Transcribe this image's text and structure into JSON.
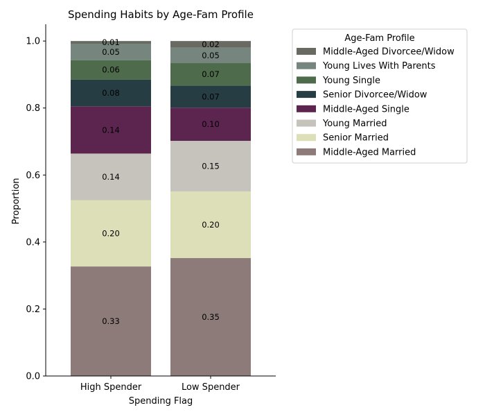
{
  "chart_data": {
    "type": "bar",
    "stacked": true,
    "title": "Spending Habits by Age-Fam Profile",
    "xlabel": "Spending Flag",
    "ylabel": "Proportion",
    "ylim": [
      0,
      1.05
    ],
    "yticks": [
      0.0,
      0.2,
      0.4,
      0.6,
      0.8,
      1.0
    ],
    "ytick_labels": [
      "0.0",
      "0.2",
      "0.4",
      "0.6",
      "0.8",
      "1.0"
    ],
    "categories": [
      "High Spender",
      "Low Spender"
    ],
    "grid": false,
    "legend": {
      "title": "Age-Fam Profile",
      "placement": "outside-right"
    },
    "series": [
      {
        "name": "Middle-Aged Married",
        "color": "#8d7b7a",
        "values": [
          0.327,
          0.352
        ],
        "labels": [
          "0.33",
          "0.35"
        ]
      },
      {
        "name": "Senior Married",
        "color": "#dcdfb8",
        "values": [
          0.198,
          0.199
        ],
        "labels": [
          "0.20",
          "0.20"
        ]
      },
      {
        "name": "Young Married",
        "color": "#c5c3bc",
        "values": [
          0.139,
          0.151
        ],
        "labels": [
          "0.14",
          "0.15"
        ]
      },
      {
        "name": "Middle-Aged Single",
        "color": "#5c2550",
        "values": [
          0.141,
          0.099
        ],
        "labels": [
          "0.14",
          "0.10"
        ]
      },
      {
        "name": "Senior Divorcee/Widow",
        "color": "#263d44",
        "values": [
          0.08,
          0.066
        ],
        "labels": [
          "0.08",
          "0.07"
        ]
      },
      {
        "name": "Young Single",
        "color": "#4e6b4b",
        "values": [
          0.058,
          0.067
        ],
        "labels": [
          "0.06",
          "0.07"
        ]
      },
      {
        "name": "Young Lives With Parents",
        "color": "#76867f",
        "values": [
          0.049,
          0.046
        ],
        "labels": [
          "0.05",
          "0.05"
        ]
      },
      {
        "name": "Middle-Aged Divorcee/Widow",
        "color": "#696b62",
        "values": [
          0.008,
          0.02
        ],
        "labels": [
          "0.01",
          "0.02"
        ]
      }
    ]
  }
}
